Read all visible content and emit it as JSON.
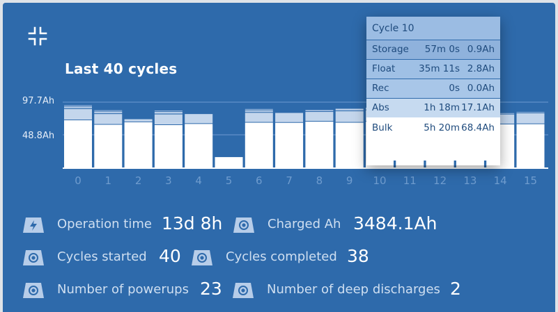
{
  "panel": {
    "title": "Last 40 cycles"
  },
  "icons": {
    "collapse": "collapse-arrows-icon",
    "bolt": "lightning-bolt-icon",
    "circle": "target-circle-icon"
  },
  "colors": {
    "background": "#2e6aab",
    "bar_base": "#ffffff",
    "bar_top": "#c4d6ec",
    "axis_label": "#6f9cce"
  },
  "chart_data": {
    "type": "bar",
    "categories": [
      "0",
      "1",
      "2",
      "3",
      "4",
      "5",
      "6",
      "7",
      "8",
      "9",
      "10",
      "11",
      "12",
      "13",
      "14",
      "15"
    ],
    "y_tick_labels": [
      "97.7Ah",
      "48.8Ah"
    ],
    "y_ticks": [
      97.7,
      48.8
    ],
    "ylim": [
      0,
      105
    ],
    "stacked": true,
    "series": [
      {
        "values": [
          70.6,
          63.9,
          67.7,
          63.4,
          65.1,
          15.5,
          67.0,
          66.8,
          68.6,
          67.0,
          68.4,
          66.0,
          66.0,
          66.0,
          64.5,
          64.8
        ]
      },
      {
        "values": [
          16.8,
          16.0,
          4.5,
          16.0,
          14.8,
          0,
          14.8,
          14.8,
          14.5,
          17.1,
          17.1,
          14.0,
          14.0,
          14.0,
          14.8,
          16.2
        ]
      },
      {
        "values": [
          2.8,
          2.8,
          0,
          2.8,
          0,
          0,
          2.8,
          0,
          2.8,
          2.8,
          2.8,
          0,
          0,
          0,
          0,
          0
        ]
      },
      {
        "values": [
          0.9,
          0.9,
          0,
          0.9,
          0,
          0,
          0.9,
          0,
          0,
          0.9,
          0.9,
          0,
          0,
          0,
          0,
          0
        ]
      },
      {
        "values": [
          2.0,
          2.0,
          0,
          2.0,
          0,
          0,
          2.0,
          0,
          0,
          0,
          0,
          0,
          0,
          0,
          2.0,
          2.0
        ]
      }
    ]
  },
  "tooltip": {
    "header": "Cycle 10",
    "rows": [
      {
        "label": "Storage",
        "duration": "57m 0s",
        "ah": "0.9Ah"
      },
      {
        "label": "Float",
        "duration": "35m 11s",
        "ah": "2.8Ah"
      },
      {
        "label": "Rec",
        "duration": "0s",
        "ah": "0.0Ah"
      },
      {
        "label": "Abs",
        "duration": "1h 18m",
        "ah": "17.1Ah"
      },
      {
        "label": "Bulk",
        "duration": "5h 20m",
        "ah": "68.4Ah"
      }
    ]
  },
  "stats": {
    "operation_time": {
      "label": "Operation time",
      "value": "13d 8h"
    },
    "charged_ah": {
      "label": "Charged Ah",
      "value": "3484.1Ah"
    },
    "cycles_started": {
      "label": "Cycles started",
      "value": "40"
    },
    "cycles_completed": {
      "label": "Cycles completed",
      "value": "38"
    },
    "powerups": {
      "label": "Number of powerups",
      "value": "23"
    },
    "deep_discharges": {
      "label": "Number of deep discharges",
      "value": "2"
    }
  }
}
